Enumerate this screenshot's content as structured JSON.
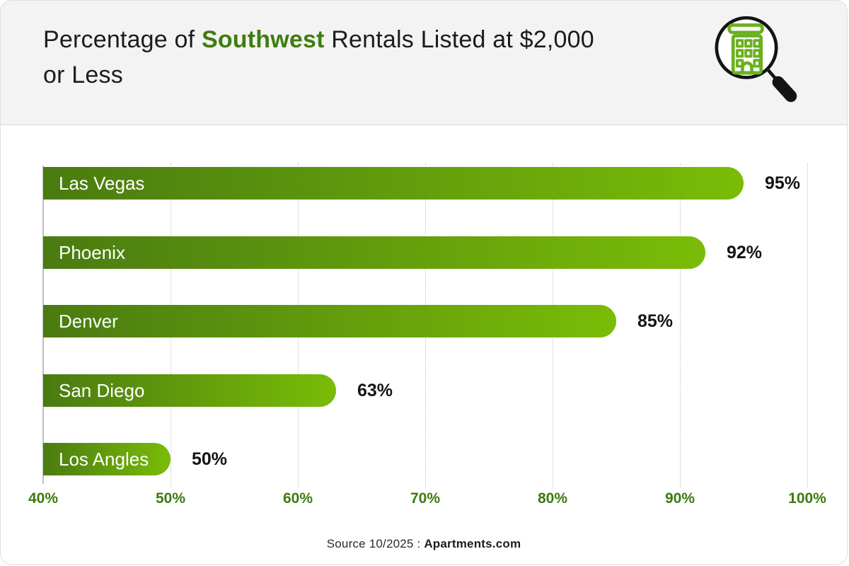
{
  "header": {
    "title_prefix": "Percentage of ",
    "title_highlight": "Southwest",
    "title_suffix": " Rentals Listed at $2,000 or Less",
    "icon": "magnifier-building-icon"
  },
  "chart_data": {
    "type": "bar",
    "orientation": "horizontal",
    "title": "Percentage of Southwest Rentals Listed at $2,000 or Less",
    "categories": [
      "Las Vegas",
      "Phoenix",
      "Denver",
      "San Diego",
      "Los Angles"
    ],
    "values": [
      95,
      92,
      85,
      63,
      50
    ],
    "value_labels": [
      "95%",
      "92%",
      "85%",
      "63%",
      "50%"
    ],
    "xlim": [
      40,
      100
    ],
    "x_tick_values": [
      40,
      50,
      60,
      70,
      80,
      90,
      100
    ],
    "x_tick_labels": [
      "40%",
      "50%",
      "60%",
      "70%",
      "80%",
      "90%",
      "100%"
    ],
    "grid": "vertical-dotted",
    "legend": "none",
    "bar_gradient_start": "#4a7b11",
    "bar_gradient_end": "#7abc07",
    "bar_label_color": "#ffffff",
    "value_label_color": "#141414",
    "tick_label_color": "#3c7b10"
  },
  "footer": {
    "source_prefix": "Source 10/2025 : ",
    "source_bold": "Apartments.com"
  },
  "colors": {
    "header_background": "#f4f3f3",
    "card_border": "#dedede",
    "title_text": "#1c1c1c",
    "title_highlight": "#3e7d10",
    "icon_green": "#6ab11d",
    "icon_black": "#141414"
  }
}
